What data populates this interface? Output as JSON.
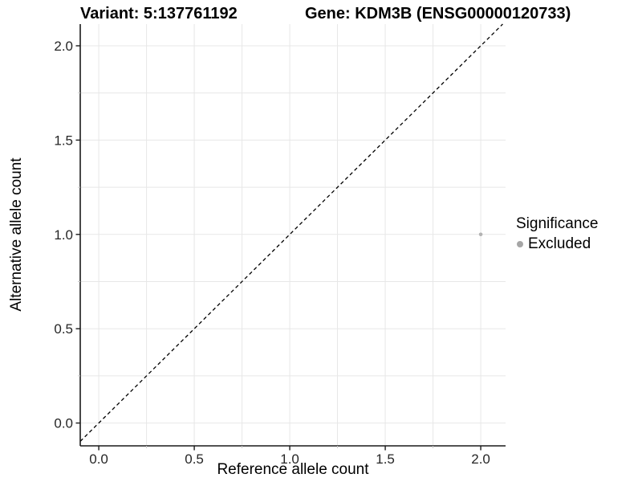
{
  "chart_data": {
    "type": "scatter",
    "title_left": "Variant: 5:137761192",
    "title_right": "Gene: KDM3B (ENSG00000120733)",
    "xlabel": "Reference allele count",
    "ylabel": "Alternative allele count",
    "xlim": [
      -0.097,
      2.13
    ],
    "ylim": [
      -0.121,
      2.115
    ],
    "ticks_major": [
      0.0,
      0.5,
      1.0,
      1.5,
      2.0
    ],
    "tick_labels": [
      "0.0",
      "0.5",
      "1.0",
      "1.5",
      "2.0"
    ],
    "ticks_minor": [
      0.25,
      0.75,
      1.25,
      1.75
    ],
    "grid": true,
    "identity_line": {
      "style": "dashed",
      "color": "#000000"
    },
    "points": [
      {
        "x": 2.0,
        "y": 1.0,
        "series": "Excluded",
        "color": "#b3b3b3",
        "radius": 2.3
      }
    ],
    "legend": {
      "title": "Significance",
      "position": "right",
      "entries": [
        {
          "label": "Excluded",
          "color": "#a6a6a6"
        }
      ]
    },
    "colors": {
      "grid": "#e7e7e7",
      "axis": "#1a1a1a",
      "tick_major": "#1a1a1a",
      "tick_minor": "#cccccc",
      "tick_text": "#262626"
    }
  }
}
